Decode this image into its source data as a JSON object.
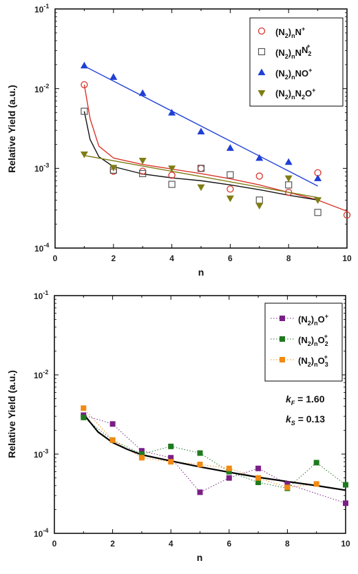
{
  "chart_data": [
    {
      "type": "scatter",
      "xlabel": "n",
      "ylabel": "Relative Yield  (a.u.)",
      "xlim": [
        0,
        10
      ],
      "ylim": [
        0.0001,
        0.1
      ],
      "yscale": "log",
      "xticks": [
        "0",
        "2",
        "4",
        "6",
        "8",
        "10"
      ],
      "yticks": [
        "10",
        "10",
        "10",
        "10"
      ],
      "ytick_exponents": [
        "-4",
        "-3",
        "-2",
        "-1"
      ],
      "legend_position": "top-right",
      "series": [
        {
          "legend": [
            "(N",
            "2",
            ")",
            "n",
            "N",
            "+",
            "",
            ""
          ],
          "marker": "circle-open",
          "color": "#d9342b",
          "x": [
            1,
            2,
            3,
            4,
            5,
            6,
            7,
            8,
            9,
            10
          ],
          "y": [
            0.0112,
            0.00092,
            0.00092,
            0.00082,
            0.001,
            0.00055,
            0.0008,
            0.0005,
            0.00088,
            0.00026
          ]
        },
        {
          "legend": [
            "(N",
            "2",
            ")",
            "n",
            "N",
            "",
            "N",
            "2",
            "+"
          ],
          "marker": "square-open",
          "color": "#555555",
          "x": [
            1,
            2,
            3,
            4,
            5,
            6,
            7,
            8,
            9
          ],
          "y": [
            0.0052,
            0.00095,
            0.00086,
            0.00063,
            0.001,
            0.00083,
            0.0004,
            0.00062,
            0.00028
          ]
        },
        {
          "legend": [
            "(N",
            "2",
            ")",
            "n",
            "NO",
            "+",
            "",
            ""
          ],
          "marker": "triangle-up",
          "color": "#1f3fd6",
          "x": [
            1,
            2,
            3,
            4,
            5,
            6,
            7,
            8,
            9
          ],
          "y": [
            0.0195,
            0.014,
            0.0088,
            0.005,
            0.0029,
            0.0018,
            0.00135,
            0.0012,
            0.00075
          ]
        },
        {
          "legend": [
            "(N",
            "2",
            ")",
            "n",
            "N",
            "2",
            "O",
            "+"
          ],
          "marker": "triangle-down",
          "color": "#7f7d14",
          "x": [
            1,
            2,
            3,
            4,
            5,
            6,
            7,
            8,
            9
          ],
          "y": [
            0.0015,
            0.00102,
            0.00125,
            0.001,
            0.00058,
            0.00042,
            0.00034,
            0.00075,
            0.0004
          ]
        }
      ],
      "fit_lines": [
        {
          "color": "#d9342b",
          "x": [
            1,
            1.2,
            1.5,
            2,
            3,
            4,
            5,
            6,
            7,
            8,
            9,
            10
          ],
          "y": [
            0.0112,
            0.0042,
            0.0019,
            0.00135,
            0.00112,
            0.00098,
            0.00086,
            0.00074,
            0.00062,
            0.0005,
            0.0004,
            0.00029
          ]
        },
        {
          "color": "#111111",
          "x": [
            1,
            1.2,
            1.5,
            2,
            3,
            4,
            5,
            6,
            7,
            8,
            9
          ],
          "y": [
            0.0052,
            0.0023,
            0.0014,
            0.00105,
            0.00085,
            0.00076,
            0.0007,
            0.00062,
            0.00054,
            0.00046,
            0.0004
          ]
        },
        {
          "color": "#1f3fd6",
          "x": [
            1,
            9
          ],
          "y": [
            0.0192,
            0.0006
          ]
        },
        {
          "color": "#7f7d14",
          "x": [
            1,
            9
          ],
          "y": [
            0.00145,
            0.00043
          ]
        }
      ]
    },
    {
      "type": "line",
      "xlabel": "n",
      "ylabel": "Relative Yield  (a.u.)",
      "xlim": [
        0,
        10
      ],
      "ylim": [
        0.0001,
        0.1
      ],
      "yscale": "log",
      "xticks": [
        "0",
        "2",
        "4",
        "6",
        "8",
        "10"
      ],
      "yticks": [
        "10",
        "10",
        "10",
        "10"
      ],
      "ytick_exponents": [
        "-4",
        "-3",
        "-2",
        "-1"
      ],
      "legend_position": "top-right",
      "series": [
        {
          "legend": [
            "(N",
            "2",
            ")",
            "n",
            "O",
            "",
            "+"
          ],
          "marker": "square",
          "color": "#7a1f86",
          "x": [
            1,
            2,
            3,
            4,
            5,
            6,
            7,
            8,
            10
          ],
          "y": [
            0.0031,
            0.0024,
            0.0011,
            0.0009,
            0.00033,
            0.0005,
            0.00066,
            0.00042,
            0.00024
          ]
        },
        {
          "legend": [
            "(N",
            "2",
            ")",
            "n",
            "O",
            "2",
            "+"
          ],
          "marker": "square",
          "color": "#1f7a1f",
          "x": [
            1,
            2,
            3,
            4,
            5,
            6,
            7,
            8,
            9,
            10
          ],
          "y": [
            0.0029,
            0.0015,
            0.001,
            0.00125,
            0.00103,
            0.0006,
            0.00044,
            0.00037,
            0.00078,
            0.00041
          ]
        },
        {
          "legend": [
            "(N",
            "2",
            ")",
            "n",
            "O",
            "3",
            "+"
          ],
          "marker": "square",
          "color": "#f28a12",
          "x": [
            1,
            2,
            3,
            4,
            5,
            6,
            7,
            8,
            9
          ],
          "y": [
            0.0038,
            0.0015,
            0.0009,
            0.0008,
            0.00074,
            0.00066,
            0.0005,
            0.00038,
            0.00042
          ]
        }
      ],
      "fit_lines": [
        {
          "color": "#000000",
          "x": [
            1,
            1.2,
            1.5,
            2,
            2.5,
            3,
            4,
            5,
            6,
            7,
            8,
            9,
            10
          ],
          "y": [
            0.0032,
            0.0026,
            0.0019,
            0.0014,
            0.00115,
            0.00098,
            0.00082,
            0.00069,
            0.00059,
            0.00051,
            0.00045,
            0.0004,
            0.00035
          ]
        }
      ],
      "annotations": [
        {
          "label": "k",
          "label_sub": "F",
          "value": " = 1.60"
        },
        {
          "label": "k",
          "label_sub": "S",
          "value": " = 0.13"
        }
      ]
    }
  ]
}
